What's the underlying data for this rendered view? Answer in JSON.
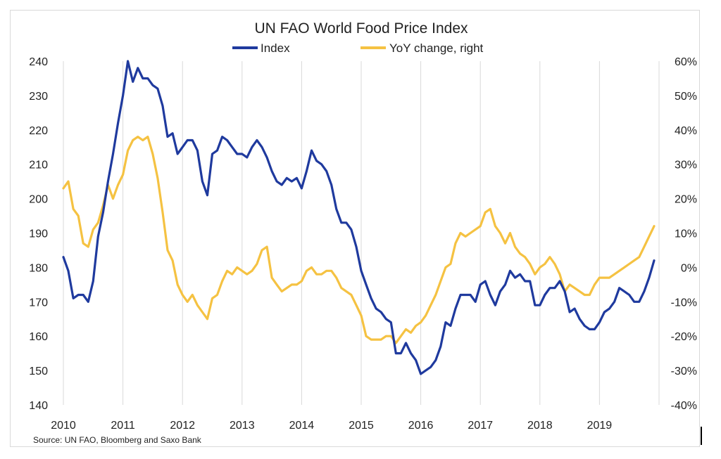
{
  "chart_data": {
    "type": "line",
    "title": "UN FAO World Food Price Index",
    "source": "Source:  UN FAO, Bloomberg and Saxo Bank",
    "xlim": [
      2010,
      2020
    ],
    "xticks": [
      "2010",
      "2011",
      "2012",
      "2013",
      "2014",
      "2015",
      "2016",
      "2017",
      "2018",
      "2019"
    ],
    "left_axis": {
      "ylim": [
        140,
        240
      ],
      "ticks": [
        "240",
        "230",
        "220",
        "210",
        "200",
        "190",
        "180",
        "170",
        "160",
        "150",
        "140"
      ]
    },
    "right_axis": {
      "ylim": [
        -40,
        60
      ],
      "ticks": [
        "60%",
        "50%",
        "40%",
        "30%",
        "20%",
        "10%",
        "0%",
        "-10%",
        "-20%",
        "-30%",
        "-40%"
      ]
    },
    "grid": "vertical",
    "legend_position": "top-center",
    "series": [
      {
        "name": "Index",
        "axis": "left",
        "color": "#1f3a9e",
        "x": [
          2010.0,
          2010.083,
          2010.167,
          2010.25,
          2010.333,
          2010.417,
          2010.5,
          2010.583,
          2010.667,
          2010.75,
          2010.833,
          2010.917,
          2011.0,
          2011.083,
          2011.167,
          2011.25,
          2011.333,
          2011.417,
          2011.5,
          2011.583,
          2011.667,
          2011.75,
          2011.833,
          2011.917,
          2012.0,
          2012.083,
          2012.167,
          2012.25,
          2012.333,
          2012.417,
          2012.5,
          2012.583,
          2012.667,
          2012.75,
          2012.833,
          2012.917,
          2013.0,
          2013.083,
          2013.167,
          2013.25,
          2013.333,
          2013.417,
          2013.5,
          2013.583,
          2013.667,
          2013.75,
          2013.833,
          2013.917,
          2014.0,
          2014.083,
          2014.167,
          2014.25,
          2014.333,
          2014.417,
          2014.5,
          2014.583,
          2014.667,
          2014.75,
          2014.833,
          2014.917,
          2015.0,
          2015.083,
          2015.167,
          2015.25,
          2015.333,
          2015.417,
          2015.5,
          2015.583,
          2015.667,
          2015.75,
          2015.833,
          2015.917,
          2016.0,
          2016.083,
          2016.167,
          2016.25,
          2016.333,
          2016.417,
          2016.5,
          2016.583,
          2016.667,
          2016.75,
          2016.833,
          2016.917,
          2017.0,
          2017.083,
          2017.167,
          2017.25,
          2017.333,
          2017.417,
          2017.5,
          2017.583,
          2017.667,
          2017.75,
          2017.833,
          2017.917,
          2018.0,
          2018.083,
          2018.167,
          2018.25,
          2018.333,
          2018.417,
          2018.5,
          2018.583,
          2018.667,
          2018.75,
          2018.833,
          2018.917,
          2019.0,
          2019.083,
          2019.167,
          2019.25,
          2019.333,
          2019.417,
          2019.5,
          2019.583,
          2019.667,
          2019.75,
          2019.833,
          2019.917
        ],
        "values": [
          183,
          179,
          171,
          172,
          172,
          170,
          176,
          189,
          196,
          205,
          213,
          222,
          230,
          240,
          234,
          238,
          235,
          235,
          233,
          232,
          227,
          218,
          219,
          213,
          215,
          217,
          217,
          214,
          205,
          201,
          213,
          214,
          218,
          217,
          215,
          213,
          213,
          212,
          215,
          217,
          215,
          212,
          208,
          205,
          204,
          206,
          205,
          206,
          203,
          208,
          214,
          211,
          210,
          208,
          204,
          197,
          193,
          193,
          191,
          186,
          179,
          175,
          171,
          168,
          167,
          165,
          164,
          155,
          155,
          158,
          155,
          153,
          149,
          150,
          151,
          153,
          157,
          164,
          163,
          168,
          172,
          172,
          172,
          170,
          175,
          176,
          172,
          169,
          173,
          175,
          179,
          177,
          178,
          176,
          176,
          169,
          169,
          172,
          174,
          174,
          176,
          173,
          167,
          168,
          165,
          163,
          162,
          162,
          164,
          167,
          168,
          170,
          174,
          173,
          172,
          170,
          170,
          173,
          177,
          182
        ]
      },
      {
        "name": "YoY change, right",
        "axis": "right",
        "color": "#f5c242",
        "x": [
          2010.0,
          2010.083,
          2010.167,
          2010.25,
          2010.333,
          2010.417,
          2010.5,
          2010.583,
          2010.667,
          2010.75,
          2010.833,
          2010.917,
          2011.0,
          2011.083,
          2011.167,
          2011.25,
          2011.333,
          2011.417,
          2011.5,
          2011.583,
          2011.667,
          2011.75,
          2011.833,
          2011.917,
          2012.0,
          2012.083,
          2012.167,
          2012.25,
          2012.333,
          2012.417,
          2012.5,
          2012.583,
          2012.667,
          2012.75,
          2012.833,
          2012.917,
          2013.0,
          2013.083,
          2013.167,
          2013.25,
          2013.333,
          2013.417,
          2013.5,
          2013.583,
          2013.667,
          2013.75,
          2013.833,
          2013.917,
          2014.0,
          2014.083,
          2014.167,
          2014.25,
          2014.333,
          2014.417,
          2014.5,
          2014.583,
          2014.667,
          2014.75,
          2014.833,
          2014.917,
          2015.0,
          2015.083,
          2015.167,
          2015.25,
          2015.333,
          2015.417,
          2015.5,
          2015.583,
          2015.667,
          2015.75,
          2015.833,
          2015.917,
          2016.0,
          2016.083,
          2016.167,
          2016.25,
          2016.333,
          2016.417,
          2016.5,
          2016.583,
          2016.667,
          2016.75,
          2016.833,
          2016.917,
          2017.0,
          2017.083,
          2017.167,
          2017.25,
          2017.333,
          2017.417,
          2017.5,
          2017.583,
          2017.667,
          2017.75,
          2017.833,
          2017.917,
          2018.0,
          2018.083,
          2018.167,
          2018.25,
          2018.333,
          2018.417,
          2018.5,
          2018.583,
          2018.667,
          2018.75,
          2018.833,
          2018.917,
          2019.0,
          2019.083,
          2019.167,
          2019.25,
          2019.333,
          2019.417,
          2019.5,
          2019.583,
          2019.667,
          2019.75,
          2019.833,
          2019.917
        ],
        "values": [
          23,
          25,
          17,
          15,
          7,
          6,
          11,
          13,
          18,
          24,
          20,
          24,
          27,
          34,
          37,
          38,
          37,
          38,
          33,
          26,
          16,
          5,
          2,
          -5,
          -8,
          -10,
          -8,
          -11,
          -13,
          -15,
          -9,
          -8,
          -4,
          -1,
          -2,
          0,
          -1,
          -2,
          -1,
          1,
          5,
          6,
          -3,
          -5,
          -7,
          -6,
          -5,
          -5,
          -4,
          -1,
          0,
          -2,
          -2,
          -1,
          -1,
          -3,
          -6,
          -7,
          -8,
          -11,
          -14,
          -20,
          -21,
          -21,
          -21,
          -20,
          -20,
          -22,
          -20,
          -18,
          -19,
          -17,
          -16,
          -14,
          -11,
          -8,
          -4,
          0,
          1,
          7,
          10,
          9,
          10,
          11,
          12,
          16,
          17,
          12,
          10,
          7,
          10,
          6,
          4,
          3,
          1,
          -2,
          0,
          1,
          3,
          1,
          -2,
          -7,
          -5,
          -6,
          -7,
          -8,
          -8,
          -5,
          -3,
          -3,
          -3,
          -2,
          -1,
          0,
          1,
          2,
          3,
          6,
          9,
          12
        ]
      }
    ]
  }
}
